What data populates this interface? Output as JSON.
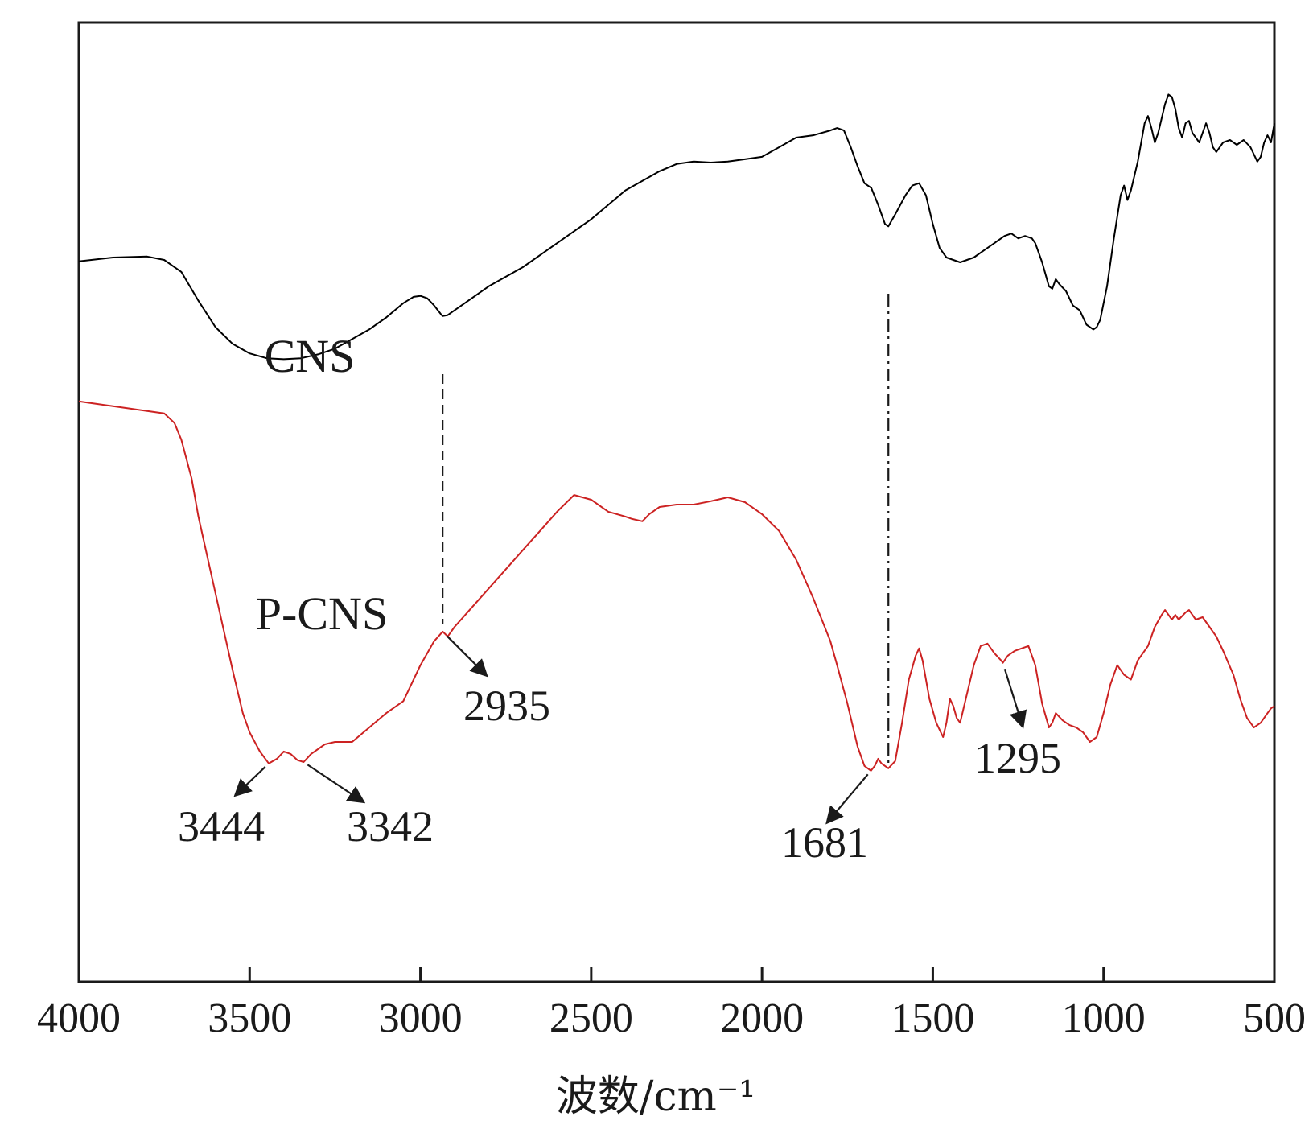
{
  "chart_data": {
    "type": "line",
    "xlabel": "波数/cm⁻¹",
    "ylabel": "",
    "xlim": [
      4000,
      500
    ],
    "x_reversed": true,
    "x_ticks": [
      4000,
      3500,
      3000,
      2500,
      2000,
      1500,
      1000,
      500
    ],
    "grid": false,
    "legend": "none",
    "series": [
      {
        "name": "CNS",
        "color": "#000000",
        "points": [
          [
            4000,
            50.2
          ],
          [
            3900,
            51.0
          ],
          [
            3800,
            51.2
          ],
          [
            3750,
            50.5
          ],
          [
            3700,
            48.0
          ],
          [
            3650,
            42.0
          ],
          [
            3600,
            36.5
          ],
          [
            3550,
            33.0
          ],
          [
            3500,
            31.0
          ],
          [
            3450,
            30.0
          ],
          [
            3400,
            29.8
          ],
          [
            3350,
            30.0
          ],
          [
            3300,
            30.8
          ],
          [
            3250,
            32.0
          ],
          [
            3200,
            34.0
          ],
          [
            3150,
            36.0
          ],
          [
            3100,
            38.5
          ],
          [
            3050,
            41.5
          ],
          [
            3020,
            42.8
          ],
          [
            3000,
            43.0
          ],
          [
            2980,
            42.5
          ],
          [
            2960,
            41.0
          ],
          [
            2940,
            39.2
          ],
          [
            2935,
            38.8
          ],
          [
            2920,
            39.0
          ],
          [
            2900,
            40.0
          ],
          [
            2850,
            42.5
          ],
          [
            2800,
            45.0
          ],
          [
            2750,
            47.0
          ],
          [
            2700,
            49.0
          ],
          [
            2650,
            51.5
          ],
          [
            2600,
            54.0
          ],
          [
            2550,
            56.5
          ],
          [
            2500,
            59.0
          ],
          [
            2450,
            62.0
          ],
          [
            2400,
            65.0
          ],
          [
            2350,
            67.0
          ],
          [
            2300,
            69.0
          ],
          [
            2250,
            70.5
          ],
          [
            2200,
            71.0
          ],
          [
            2150,
            70.8
          ],
          [
            2100,
            71.0
          ],
          [
            2050,
            71.5
          ],
          [
            2000,
            72.0
          ],
          [
            1950,
            74.0
          ],
          [
            1900,
            76.0
          ],
          [
            1850,
            76.5
          ],
          [
            1800,
            77.5
          ],
          [
            1780,
            78.0
          ],
          [
            1760,
            77.5
          ],
          [
            1740,
            74.0
          ],
          [
            1720,
            70.0
          ],
          [
            1700,
            66.5
          ],
          [
            1680,
            65.5
          ],
          [
            1660,
            62.0
          ],
          [
            1640,
            58.0
          ],
          [
            1630,
            57.5
          ],
          [
            1610,
            60.0
          ],
          [
            1580,
            64.0
          ],
          [
            1560,
            66.0
          ],
          [
            1540,
            66.5
          ],
          [
            1520,
            64.0
          ],
          [
            1500,
            58.0
          ],
          [
            1480,
            53.0
          ],
          [
            1460,
            51.0
          ],
          [
            1440,
            50.5
          ],
          [
            1420,
            50.0
          ],
          [
            1400,
            50.5
          ],
          [
            1380,
            51.0
          ],
          [
            1350,
            52.5
          ],
          [
            1320,
            54.0
          ],
          [
            1290,
            55.5
          ],
          [
            1270,
            56.0
          ],
          [
            1250,
            55.0
          ],
          [
            1230,
            55.5
          ],
          [
            1210,
            55.0
          ],
          [
            1200,
            54.0
          ],
          [
            1180,
            50.0
          ],
          [
            1160,
            45.0
          ],
          [
            1150,
            44.5
          ],
          [
            1140,
            46.5
          ],
          [
            1130,
            45.5
          ],
          [
            1110,
            44.0
          ],
          [
            1090,
            41.0
          ],
          [
            1070,
            40.0
          ],
          [
            1050,
            37.0
          ],
          [
            1030,
            36.0
          ],
          [
            1020,
            36.5
          ],
          [
            1010,
            38.0
          ],
          [
            990,
            45.0
          ],
          [
            970,
            55.0
          ],
          [
            950,
            64.0
          ],
          [
            940,
            66.0
          ],
          [
            930,
            63.0
          ],
          [
            920,
            65.0
          ],
          [
            900,
            71.0
          ],
          [
            880,
            79.0
          ],
          [
            870,
            80.5
          ],
          [
            860,
            78.0
          ],
          [
            850,
            75.0
          ],
          [
            840,
            77.0
          ],
          [
            820,
            83.0
          ],
          [
            810,
            85.0
          ],
          [
            800,
            84.5
          ],
          [
            790,
            82.0
          ],
          [
            780,
            78.0
          ],
          [
            770,
            76.0
          ],
          [
            760,
            79.0
          ],
          [
            750,
            79.5
          ],
          [
            740,
            77.0
          ],
          [
            720,
            75.0
          ],
          [
            710,
            77.0
          ],
          [
            700,
            79.0
          ],
          [
            690,
            77.0
          ],
          [
            680,
            74.0
          ],
          [
            670,
            73.0
          ],
          [
            650,
            75.0
          ],
          [
            630,
            75.5
          ],
          [
            610,
            74.5
          ],
          [
            590,
            75.5
          ],
          [
            570,
            74.0
          ],
          [
            550,
            71.0
          ],
          [
            540,
            72.0
          ],
          [
            530,
            75.0
          ],
          [
            520,
            76.5
          ],
          [
            510,
            75.0
          ],
          [
            500,
            79.0
          ]
        ]
      },
      {
        "name": "P-CNS",
        "color": "#cc2222",
        "points": [
          [
            4000,
            21.0
          ],
          [
            3950,
            20.5
          ],
          [
            3900,
            20.0
          ],
          [
            3850,
            19.5
          ],
          [
            3800,
            19.0
          ],
          [
            3750,
            18.5
          ],
          [
            3720,
            16.5
          ],
          [
            3700,
            13.0
          ],
          [
            3670,
            5.0
          ],
          [
            3650,
            -3.0
          ],
          [
            3600,
            -19.0
          ],
          [
            3550,
            -35.0
          ],
          [
            3520,
            -44.0
          ],
          [
            3500,
            -48.0
          ],
          [
            3470,
            -52.0
          ],
          [
            3444,
            -54.5
          ],
          [
            3420,
            -53.5
          ],
          [
            3400,
            -52.0
          ],
          [
            3380,
            -52.5
          ],
          [
            3360,
            -53.8
          ],
          [
            3342,
            -54.2
          ],
          [
            3320,
            -52.5
          ],
          [
            3280,
            -50.5
          ],
          [
            3250,
            -50.0
          ],
          [
            3200,
            -50.0
          ],
          [
            3150,
            -47.0
          ],
          [
            3100,
            -44.0
          ],
          [
            3050,
            -41.5
          ],
          [
            3000,
            -34.0
          ],
          [
            2960,
            -29.0
          ],
          [
            2935,
            -27.0
          ],
          [
            2920,
            -28.0
          ],
          [
            2900,
            -26.0
          ],
          [
            2850,
            -22.0
          ],
          [
            2800,
            -18.0
          ],
          [
            2750,
            -14.0
          ],
          [
            2700,
            -10.0
          ],
          [
            2650,
            -6.0
          ],
          [
            2600,
            -2.0
          ],
          [
            2550,
            1.5
          ],
          [
            2500,
            0.5
          ],
          [
            2450,
            -2.0
          ],
          [
            2400,
            -3.0
          ],
          [
            2380,
            -3.5
          ],
          [
            2350,
            -4.0
          ],
          [
            2330,
            -2.5
          ],
          [
            2300,
            -1.0
          ],
          [
            2250,
            -0.5
          ],
          [
            2200,
            -0.5
          ],
          [
            2150,
            0.2
          ],
          [
            2100,
            1.0
          ],
          [
            2050,
            0.0
          ],
          [
            2000,
            -2.5
          ],
          [
            1950,
            -6.0
          ],
          [
            1900,
            -12.0
          ],
          [
            1850,
            -20.0
          ],
          [
            1800,
            -29.0
          ],
          [
            1780,
            -34.0
          ],
          [
            1750,
            -42.0
          ],
          [
            1720,
            -51.0
          ],
          [
            1700,
            -55.0
          ],
          [
            1681,
            -56.0
          ],
          [
            1670,
            -55.0
          ],
          [
            1660,
            -53.5
          ],
          [
            1650,
            -54.5
          ],
          [
            1630,
            -55.5
          ],
          [
            1610,
            -54.0
          ],
          [
            1590,
            -46.0
          ],
          [
            1570,
            -37.0
          ],
          [
            1550,
            -32.0
          ],
          [
            1540,
            -30.5
          ],
          [
            1530,
            -33.0
          ],
          [
            1510,
            -41.0
          ],
          [
            1490,
            -46.0
          ],
          [
            1470,
            -49.0
          ],
          [
            1460,
            -46.0
          ],
          [
            1450,
            -41.0
          ],
          [
            1440,
            -42.5
          ],
          [
            1430,
            -45.0
          ],
          [
            1420,
            -46.0
          ],
          [
            1400,
            -40.0
          ],
          [
            1380,
            -34.0
          ],
          [
            1360,
            -30.0
          ],
          [
            1340,
            -29.5
          ],
          [
            1320,
            -31.5
          ],
          [
            1300,
            -33.0
          ],
          [
            1295,
            -33.5
          ],
          [
            1280,
            -32.0
          ],
          [
            1260,
            -31.0
          ],
          [
            1240,
            -30.5
          ],
          [
            1220,
            -30.0
          ],
          [
            1200,
            -34.0
          ],
          [
            1180,
            -42.0
          ],
          [
            1160,
            -47.0
          ],
          [
            1150,
            -46.0
          ],
          [
            1140,
            -44.0
          ],
          [
            1120,
            -45.5
          ],
          [
            1100,
            -46.5
          ],
          [
            1080,
            -47.0
          ],
          [
            1060,
            -48.0
          ],
          [
            1040,
            -50.0
          ],
          [
            1020,
            -49.0
          ],
          [
            1000,
            -44.0
          ],
          [
            980,
            -38.0
          ],
          [
            960,
            -34.0
          ],
          [
            940,
            -36.0
          ],
          [
            920,
            -37.0
          ],
          [
            900,
            -33.0
          ],
          [
            870,
            -30.0
          ],
          [
            850,
            -26.0
          ],
          [
            830,
            -23.5
          ],
          [
            820,
            -22.5
          ],
          [
            810,
            -23.5
          ],
          [
            800,
            -24.5
          ],
          [
            790,
            -23.5
          ],
          [
            780,
            -24.5
          ],
          [
            760,
            -23.0
          ],
          [
            750,
            -22.5
          ],
          [
            730,
            -24.5
          ],
          [
            710,
            -24.0
          ],
          [
            690,
            -26.0
          ],
          [
            670,
            -28.0
          ],
          [
            650,
            -31.0
          ],
          [
            620,
            -36.0
          ],
          [
            600,
            -41.0
          ],
          [
            580,
            -45.0
          ],
          [
            560,
            -47.0
          ],
          [
            540,
            -46.0
          ],
          [
            520,
            -44.0
          ],
          [
            510,
            -43.0
          ],
          [
            500,
            -42.5
          ]
        ]
      }
    ],
    "series_labels": [
      "CNS",
      "P-CNS"
    ],
    "reference_lines": [
      {
        "x": 2935,
        "style": "dashed"
      },
      {
        "x": 1630,
        "style": "dashdot"
      }
    ],
    "annotations": [
      {
        "label": "3444",
        "x": 3444
      },
      {
        "label": "3342",
        "x": 3342
      },
      {
        "label": "2935",
        "x": 2935
      },
      {
        "label": "1681",
        "x": 1681
      },
      {
        "label": "1295",
        "x": 1295
      }
    ]
  }
}
